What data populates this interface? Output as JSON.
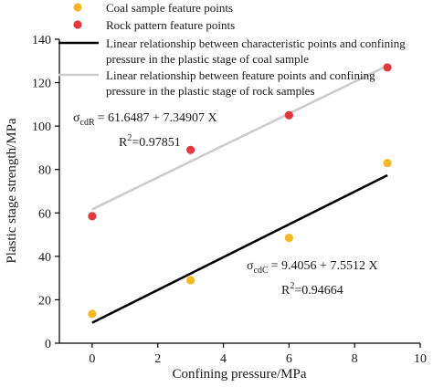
{
  "chart_data": {
    "type": "scatter",
    "xlabel": "Confining pressure/MPa",
    "ylabel": "Plastic stage strength/MPa",
    "xlim": [
      -1,
      10
    ],
    "ylim": [
      0,
      140
    ],
    "xticks": [
      0,
      2,
      4,
      6,
      8,
      10
    ],
    "yticks": [
      0,
      20,
      40,
      60,
      80,
      100,
      120,
      140
    ],
    "grid": false,
    "legend_position": "top-left",
    "series": [
      {
        "name": "Coal sample feature points",
        "kind": "scatter",
        "color": "#f4b826",
        "x": [
          0,
          3,
          6,
          9
        ],
        "y": [
          13.5,
          29,
          48.5,
          83
        ]
      },
      {
        "name": "Rock pattern feature points",
        "kind": "scatter",
        "color": "#e03a3e",
        "x": [
          0,
          3,
          6,
          9
        ],
        "y": [
          58.5,
          89,
          105,
          127
        ]
      },
      {
        "name": "Linear relationship between characteristic points and confining pressure in the plastic  stage of coal sample",
        "kind": "line",
        "color": "#000000",
        "x": [
          0,
          9
        ],
        "y": [
          9.4056,
          77.3664
        ]
      },
      {
        "name": "Linear relationship between feature points and confining pressure in the plastic stage of rock samples",
        "kind": "line",
        "color": "#cccccc",
        "x": [
          0,
          9
        ],
        "y": [
          61.6487,
          127.7903
        ]
      }
    ],
    "annotations": {
      "rock_sigma": "σ",
      "rock_sub": "cdR",
      "rock_eq": "= 61.6487 + 7.34907 X",
      "rock_r2_r": "R",
      "rock_r2_sup": "2",
      "rock_r2_val": "=0.97851",
      "coal_sigma": "σ",
      "coal_sub": "cdC",
      "coal_eq": "= 9.4056 + 7.5512  X",
      "coal_r2_r": "R",
      "coal_r2_sup": "2",
      "coal_r2_val": "=0.94664"
    }
  }
}
